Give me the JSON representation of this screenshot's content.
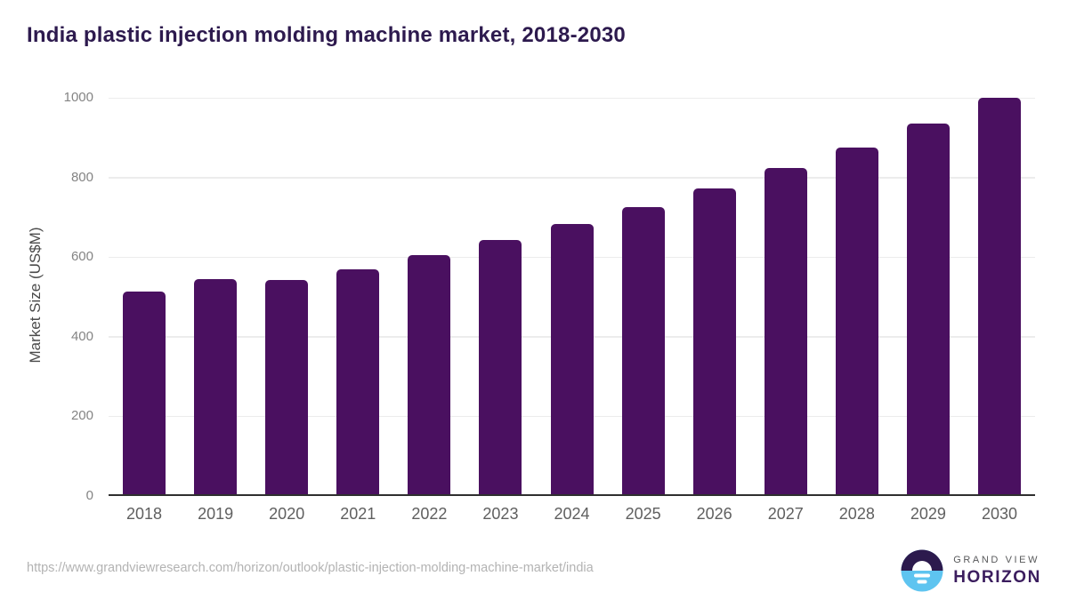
{
  "title": "India plastic injection molding machine market, 2018-2030",
  "source_url": "https://www.grandviewresearch.com/horizon/outlook/plastic-injection-molding-machine-market/india",
  "logo": {
    "top_text": "GRAND VIEW",
    "bottom_text": "HORIZON"
  },
  "colors": {
    "bar": "#4a1060",
    "title": "#2d1a4e",
    "gridline": "#ececec",
    "axis_line": "#2f2f2f",
    "y_tick": "#848484",
    "x_tick": "#5f5f5f",
    "y_label": "#4a4a4a",
    "url": "#b3b3b3",
    "logo_dark": "#2c1a4d",
    "logo_blue": "#5ec4f0",
    "logo_gray": "#58595b",
    "logo_purple": "#3b1d5e"
  },
  "chart_data": {
    "type": "bar",
    "title": "India plastic injection molding machine market, 2018-2030",
    "categories": [
      "2018",
      "2019",
      "2020",
      "2021",
      "2022",
      "2023",
      "2024",
      "2025",
      "2026",
      "2027",
      "2028",
      "2029",
      "2030"
    ],
    "values": [
      513,
      544,
      542,
      570,
      604,
      642,
      682,
      725,
      772,
      824,
      874,
      935,
      1000
    ],
    "xlabel": "",
    "ylabel": "Market Size (US$M)",
    "ylim": [
      0,
      1000
    ],
    "yticks": [
      0,
      200,
      400,
      600,
      800,
      1000
    ],
    "grid": true,
    "legend_position": "none",
    "bar_color": "#4a1060"
  }
}
